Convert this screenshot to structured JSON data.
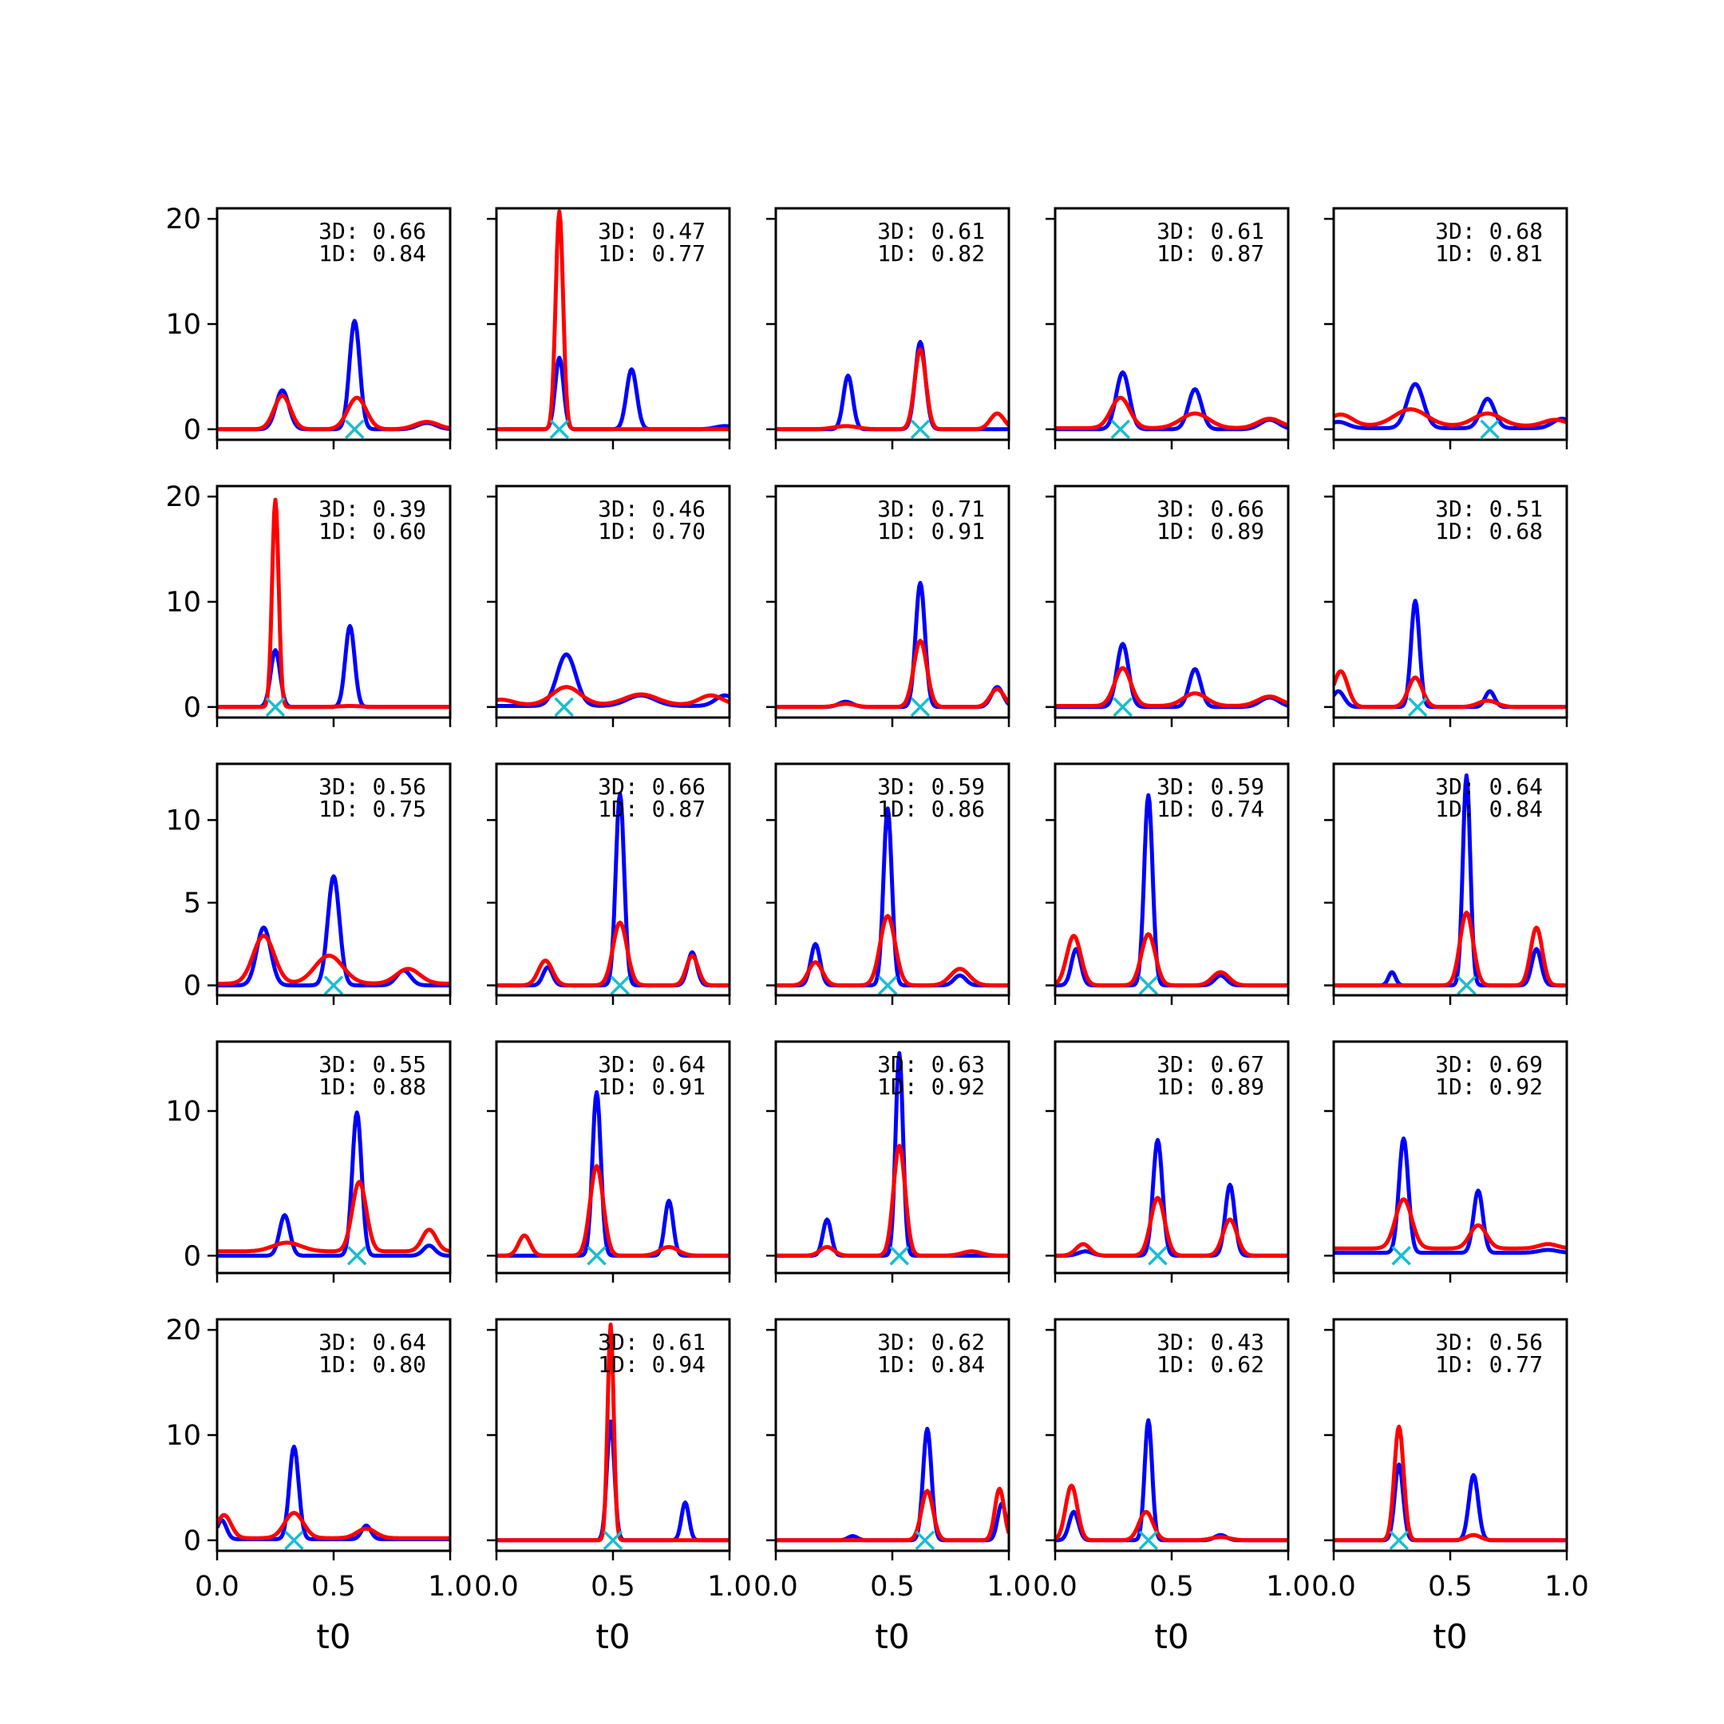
{
  "chart_data": {
    "type": "line",
    "layout": "5x5 grid of small multiples",
    "xlabel": "t0",
    "xlim": [
      0,
      1
    ],
    "xticks": [
      0,
      0.5,
      1
    ],
    "xtick_labels": [
      "0.0",
      "0.5",
      "1.0"
    ],
    "row_ylims": [
      [
        -1,
        21
      ],
      [
        -1,
        21
      ],
      [
        -0.6,
        13.4
      ],
      [
        -1.2,
        14.8
      ],
      [
        -1,
        21
      ]
    ],
    "row_yticks": [
      [
        0,
        10,
        20
      ],
      [
        0,
        10,
        20
      ],
      [
        0,
        5,
        10
      ],
      [
        0,
        10
      ],
      [
        0,
        10,
        20
      ]
    ],
    "colors": {
      "series_blue": "#0000ff",
      "series_red": "#ff0000",
      "marker": "#17becf"
    },
    "panels": [
      {
        "anno3d": "3D: 0.66",
        "anno1d": "1D: 0.84",
        "marker_x": 0.59,
        "blue": [
          [
            0.28,
            3.7,
            0.028
          ],
          [
            0.59,
            10.3,
            0.022
          ],
          [
            0.9,
            0.6,
            0.04
          ]
        ],
        "red": [
          [
            0.28,
            3.2,
            0.035
          ],
          [
            0.6,
            3.0,
            0.04
          ],
          [
            0.9,
            0.7,
            0.05
          ]
        ],
        "blue_base": 0,
        "red_base": 0
      },
      {
        "anno3d": "3D: 0.47",
        "anno1d": "1D: 0.77",
        "marker_x": 0.27,
        "blue": [
          [
            0.27,
            6.8,
            0.018
          ],
          [
            0.58,
            5.7,
            0.022
          ],
          [
            0.98,
            0.3,
            0.04
          ]
        ],
        "red": [
          [
            0.27,
            20.7,
            0.016
          ]
        ],
        "blue_base": 0,
        "red_base": 0
      },
      {
        "anno3d": "3D: 0.61",
        "anno1d": "1D: 0.82",
        "marker_x": 0.62,
        "blue": [
          [
            0.31,
            5.1,
            0.02
          ],
          [
            0.62,
            8.3,
            0.022
          ]
        ],
        "red": [
          [
            0.3,
            0.3,
            0.05
          ],
          [
            0.62,
            7.6,
            0.024
          ],
          [
            0.95,
            1.5,
            0.03
          ]
        ],
        "blue_base": 0,
        "red_base": 0
      },
      {
        "anno3d": "3D: 0.61",
        "anno1d": "1D: 0.87",
        "marker_x": 0.28,
        "blue": [
          [
            0.29,
            5.4,
            0.028
          ],
          [
            0.6,
            3.8,
            0.028
          ],
          [
            0.92,
            0.9,
            0.04
          ]
        ],
        "red": [
          [
            0.28,
            2.9,
            0.04
          ],
          [
            0.6,
            1.4,
            0.06
          ],
          [
            0.92,
            0.9,
            0.05
          ]
        ],
        "blue_base": 0,
        "red_base": 0.1
      },
      {
        "anno3d": "3D: 0.68",
        "anno1d": "1D: 0.81",
        "marker_x": 0.67,
        "blue": [
          [
            0.35,
            4.2,
            0.035
          ],
          [
            0.66,
            2.8,
            0.03
          ],
          [
            0.98,
            0.9,
            0.04
          ],
          [
            0.02,
            0.6,
            0.04
          ]
        ],
        "red": [
          [
            0.33,
            1.6,
            0.07
          ],
          [
            0.66,
            1.2,
            0.06
          ],
          [
            0.03,
            1.1,
            0.05
          ],
          [
            0.95,
            0.6,
            0.05
          ]
        ],
        "blue_base": 0.1,
        "red_base": 0.3
      },
      {
        "anno3d": "3D: 0.39",
        "anno1d": "1D: 0.60",
        "marker_x": 0.25,
        "blue": [
          [
            0.25,
            5.4,
            0.02
          ],
          [
            0.57,
            7.7,
            0.02
          ]
        ],
        "red": [
          [
            0.25,
            19.7,
            0.014
          ],
          [
            0.57,
            0.1,
            0.05
          ]
        ],
        "blue_base": 0,
        "red_base": 0
      },
      {
        "anno3d": "3D: 0.46",
        "anno1d": "1D: 0.70",
        "marker_x": 0.29,
        "blue": [
          [
            0.3,
            4.9,
            0.04
          ],
          [
            0.62,
            1.0,
            0.06
          ],
          [
            0.98,
            1.0,
            0.04
          ]
        ],
        "red": [
          [
            0.3,
            1.7,
            0.06
          ],
          [
            0.62,
            1.0,
            0.07
          ],
          [
            0.92,
            0.9,
            0.05
          ],
          [
            0.02,
            0.5,
            0.05
          ]
        ],
        "blue_base": 0.1,
        "red_base": 0.2
      },
      {
        "anno3d": "3D: 0.71",
        "anno1d": "1D: 0.91",
        "marker_x": 0.62,
        "blue": [
          [
            0.3,
            0.5,
            0.03
          ],
          [
            0.62,
            11.8,
            0.02
          ],
          [
            0.95,
            1.9,
            0.025
          ]
        ],
        "red": [
          [
            0.62,
            6.3,
            0.028
          ],
          [
            0.95,
            1.7,
            0.03
          ],
          [
            0.3,
            0.3,
            0.04
          ]
        ],
        "blue_base": 0,
        "red_base": 0
      },
      {
        "anno3d": "3D: 0.66",
        "anno1d": "1D: 0.89",
        "marker_x": 0.29,
        "blue": [
          [
            0.29,
            6.0,
            0.025
          ],
          [
            0.6,
            3.6,
            0.025
          ],
          [
            0.92,
            0.9,
            0.04
          ]
        ],
        "red": [
          [
            0.29,
            3.6,
            0.035
          ],
          [
            0.6,
            1.2,
            0.05
          ],
          [
            0.92,
            0.9,
            0.05
          ]
        ],
        "blue_base": 0,
        "red_base": 0.1
      },
      {
        "anno3d": "3D: 0.51",
        "anno1d": "1D: 0.68",
        "marker_x": 0.36,
        "blue": [
          [
            0.35,
            10.1,
            0.018
          ],
          [
            0.67,
            1.5,
            0.02
          ],
          [
            0.02,
            1.5,
            0.025
          ]
        ],
        "red": [
          [
            0.35,
            2.8,
            0.03
          ],
          [
            0.03,
            3.4,
            0.03
          ],
          [
            0.66,
            0.6,
            0.04
          ]
        ],
        "blue_base": 0,
        "red_base": 0
      },
      {
        "anno3d": "3D: 0.56",
        "anno1d": "1D: 0.75",
        "marker_x": 0.5,
        "blue": [
          [
            0.2,
            3.5,
            0.03
          ],
          [
            0.5,
            6.6,
            0.025
          ],
          [
            0.8,
            0.9,
            0.03
          ]
        ],
        "red": [
          [
            0.2,
            2.9,
            0.045
          ],
          [
            0.48,
            1.7,
            0.06
          ],
          [
            0.82,
            0.9,
            0.05
          ]
        ],
        "blue_base": 0,
        "red_base": 0.1
      },
      {
        "anno3d": "3D: 0.66",
        "anno1d": "1D: 0.87",
        "marker_x": 0.53,
        "blue": [
          [
            0.22,
            1.1,
            0.02
          ],
          [
            0.53,
            11.6,
            0.018
          ],
          [
            0.84,
            2.0,
            0.02
          ]
        ],
        "red": [
          [
            0.21,
            1.5,
            0.03
          ],
          [
            0.53,
            3.8,
            0.03
          ],
          [
            0.84,
            1.8,
            0.025
          ]
        ],
        "blue_base": 0,
        "red_base": 0
      },
      {
        "anno3d": "3D: 0.59",
        "anno1d": "1D: 0.86",
        "marker_x": 0.48,
        "blue": [
          [
            0.17,
            2.5,
            0.02
          ],
          [
            0.48,
            10.7,
            0.018
          ],
          [
            0.79,
            0.6,
            0.025
          ]
        ],
        "red": [
          [
            0.17,
            1.4,
            0.03
          ],
          [
            0.48,
            4.2,
            0.032
          ],
          [
            0.79,
            1.0,
            0.04
          ]
        ],
        "blue_base": 0,
        "red_base": 0
      },
      {
        "anno3d": "3D: 0.59",
        "anno1d": "1D: 0.74",
        "marker_x": 0.4,
        "blue": [
          [
            0.09,
            2.2,
            0.02
          ],
          [
            0.4,
            11.5,
            0.018
          ],
          [
            0.71,
            0.6,
            0.025
          ]
        ],
        "red": [
          [
            0.08,
            3.0,
            0.03
          ],
          [
            0.4,
            3.1,
            0.03
          ],
          [
            0.71,
            0.8,
            0.035
          ]
        ],
        "blue_base": 0,
        "red_base": 0
      },
      {
        "anno3d": "3D: 0.64",
        "anno1d": "1D: 0.84",
        "marker_x": 0.57,
        "blue": [
          [
            0.25,
            0.8,
            0.015
          ],
          [
            0.57,
            12.7,
            0.016
          ],
          [
            0.87,
            2.2,
            0.02
          ]
        ],
        "red": [
          [
            0.57,
            4.4,
            0.028
          ],
          [
            0.87,
            3.5,
            0.025
          ]
        ],
        "blue_base": 0,
        "red_base": 0
      },
      {
        "anno3d": "3D: 0.55",
        "anno1d": "1D: 0.88",
        "marker_x": 0.6,
        "blue": [
          [
            0.29,
            2.8,
            0.022
          ],
          [
            0.6,
            9.9,
            0.02
          ],
          [
            0.91,
            0.7,
            0.025
          ]
        ],
        "red": [
          [
            0.3,
            0.6,
            0.06
          ],
          [
            0.61,
            4.8,
            0.03
          ],
          [
            0.91,
            1.5,
            0.03
          ]
        ],
        "blue_base": 0,
        "red_base": 0.3
      },
      {
        "anno3d": "3D: 0.64",
        "anno1d": "1D: 0.91",
        "marker_x": 0.43,
        "blue": [
          [
            0.43,
            11.3,
            0.018
          ],
          [
            0.74,
            3.8,
            0.018
          ]
        ],
        "red": [
          [
            0.43,
            6.2,
            0.028
          ],
          [
            0.12,
            1.4,
            0.025
          ],
          [
            0.74,
            0.6,
            0.04
          ]
        ],
        "blue_base": 0,
        "red_base": 0
      },
      {
        "anno3d": "3D: 0.63",
        "anno1d": "1D: 0.92",
        "marker_x": 0.53,
        "blue": [
          [
            0.22,
            2.5,
            0.018
          ],
          [
            0.53,
            14.0,
            0.016
          ]
        ],
        "red": [
          [
            0.53,
            7.6,
            0.025
          ],
          [
            0.22,
            0.6,
            0.03
          ],
          [
            0.84,
            0.3,
            0.04
          ]
        ],
        "blue_base": 0,
        "red_base": 0
      },
      {
        "anno3d": "3D: 0.67",
        "anno1d": "1D: 0.89",
        "marker_x": 0.44,
        "blue": [
          [
            0.44,
            8.0,
            0.02
          ],
          [
            0.75,
            4.9,
            0.02
          ],
          [
            0.13,
            0.3,
            0.03
          ]
        ],
        "red": [
          [
            0.44,
            4.0,
            0.03
          ],
          [
            0.75,
            2.5,
            0.03
          ],
          [
            0.12,
            0.8,
            0.03
          ]
        ],
        "blue_base": 0,
        "red_base": 0
      },
      {
        "anno3d": "3D: 0.69",
        "anno1d": "1D: 0.92",
        "marker_x": 0.29,
        "blue": [
          [
            0.3,
            7.9,
            0.02
          ],
          [
            0.62,
            4.3,
            0.02
          ],
          [
            0.92,
            0.2,
            0.04
          ]
        ],
        "red": [
          [
            0.3,
            3.4,
            0.035
          ],
          [
            0.62,
            1.6,
            0.035
          ],
          [
            0.92,
            0.3,
            0.04
          ]
        ],
        "blue_base": 0.2,
        "red_base": 0.5
      },
      {
        "anno3d": "3D: 0.64",
        "anno1d": "1D: 0.80",
        "marker_x": 0.33,
        "blue": [
          [
            0.33,
            8.8,
            0.02
          ],
          [
            0.64,
            1.3,
            0.02
          ],
          [
            0.02,
            1.8,
            0.02
          ]
        ],
        "red": [
          [
            0.33,
            2.4,
            0.04
          ],
          [
            0.64,
            0.9,
            0.04
          ],
          [
            0.03,
            2.2,
            0.03
          ]
        ],
        "blue_base": 0.1,
        "red_base": 0.2
      },
      {
        "anno3d": "3D: 0.61",
        "anno1d": "1D: 0.94",
        "marker_x": 0.5,
        "blue": [
          [
            0.49,
            11.3,
            0.016
          ],
          [
            0.81,
            3.6,
            0.016
          ]
        ],
        "red": [
          [
            0.49,
            20.5,
            0.013
          ]
        ],
        "blue_base": 0,
        "red_base": 0
      },
      {
        "anno3d": "3D: 0.62",
        "anno1d": "1D: 0.84",
        "marker_x": 0.64,
        "blue": [
          [
            0.33,
            0.4,
            0.02
          ],
          [
            0.65,
            10.6,
            0.018
          ],
          [
            0.97,
            3.5,
            0.018
          ]
        ],
        "red": [
          [
            0.65,
            4.7,
            0.025
          ],
          [
            0.96,
            4.9,
            0.02
          ]
        ],
        "blue_base": 0,
        "red_base": 0
      },
      {
        "anno3d": "3D: 0.43",
        "anno1d": "1D: 0.62",
        "marker_x": 0.4,
        "blue": [
          [
            0.08,
            2.7,
            0.02
          ],
          [
            0.4,
            11.4,
            0.016
          ],
          [
            0.71,
            0.5,
            0.025
          ]
        ],
        "red": [
          [
            0.07,
            5.2,
            0.025
          ],
          [
            0.39,
            2.7,
            0.03
          ],
          [
            0.71,
            0.3,
            0.04
          ]
        ],
        "blue_base": 0,
        "red_base": 0
      },
      {
        "anno3d": "3D: 0.56",
        "anno1d": "1D: 0.77",
        "marker_x": 0.28,
        "blue": [
          [
            0.28,
            7.2,
            0.018
          ],
          [
            0.6,
            6.2,
            0.02
          ]
        ],
        "red": [
          [
            0.28,
            10.8,
            0.02
          ],
          [
            0.6,
            0.5,
            0.03
          ]
        ],
        "blue_base": 0,
        "red_base": 0
      }
    ]
  }
}
